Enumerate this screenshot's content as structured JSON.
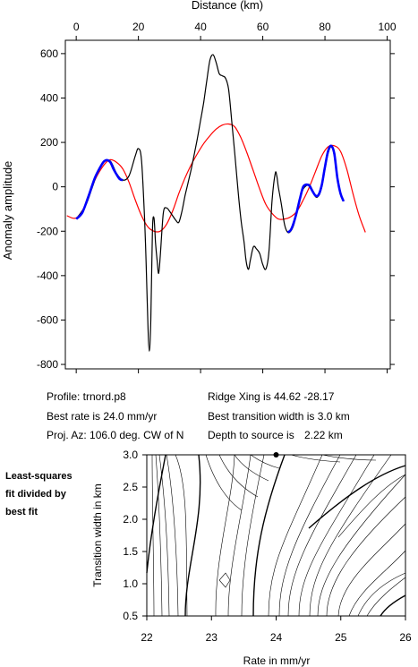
{
  "chart_data": [
    {
      "type": "line",
      "xlabel": "Distance (km)",
      "ylabel": "Anomaly amplitude",
      "xlim": [
        -3.5,
        101
      ],
      "ylim": [
        -820,
        660
      ],
      "xticks": [
        0,
        20,
        40,
        60,
        80,
        100
      ],
      "yticks": [
        -800,
        -600,
        -400,
        -200,
        0,
        200,
        400,
        600
      ],
      "series": [
        {
          "color": "#000000",
          "points": [
            [
              0,
              -145
            ],
            [
              3,
              -85
            ],
            [
              5,
              -10
            ],
            [
              7,
              70
            ],
            [
              9,
              115
            ],
            [
              11,
              115
            ],
            [
              13,
              60
            ],
            [
              15,
              30
            ],
            [
              17,
              50
            ],
            [
              19,
              140
            ],
            [
              20,
              172
            ],
            [
              21,
              120
            ],
            [
              22,
              -150
            ],
            [
              22.5,
              -350
            ],
            [
              23,
              -600
            ],
            [
              23.5,
              -740
            ],
            [
              24,
              -600
            ],
            [
              24.5,
              -200
            ],
            [
              25,
              -140
            ],
            [
              25.5,
              -250
            ],
            [
              26,
              -330
            ],
            [
              26.5,
              -390
            ],
            [
              27,
              -320
            ],
            [
              28,
              -120
            ],
            [
              29,
              -95
            ],
            [
              30,
              -110
            ],
            [
              31,
              -130
            ],
            [
              32,
              -150
            ],
            [
              33,
              -160
            ],
            [
              34,
              -110
            ],
            [
              35,
              -40
            ],
            [
              36,
              20
            ],
            [
              37,
              80
            ],
            [
              38,
              150
            ],
            [
              39,
              220
            ],
            [
              40,
              300
            ],
            [
              41,
              380
            ],
            [
              42,
              480
            ],
            [
              43,
              570
            ],
            [
              44,
              595
            ],
            [
              45,
              560
            ],
            [
              46,
              510
            ],
            [
              47,
              500
            ],
            [
              48,
              490
            ],
            [
              49,
              440
            ],
            [
              50,
              300
            ],
            [
              51,
              150
            ],
            [
              52,
              -10
            ],
            [
              53,
              -150
            ],
            [
              54,
              -250
            ],
            [
              54.5,
              -320
            ],
            [
              55,
              -360
            ],
            [
              55.5,
              -370
            ],
            [
              56,
              -330
            ],
            [
              57,
              -270
            ],
            [
              58,
              -280
            ],
            [
              59,
              -300
            ],
            [
              60,
              -350
            ],
            [
              61,
              -370
            ],
            [
              62,
              -290
            ],
            [
              63,
              -60
            ],
            [
              64,
              60
            ],
            [
              64.5,
              50
            ],
            [
              65,
              0
            ],
            [
              66,
              -80
            ],
            [
              67,
              -170
            ],
            [
              68,
              -205
            ],
            [
              69,
              -200
            ],
            [
              70,
              -170
            ],
            [
              71,
              -110
            ],
            [
              72,
              -50
            ],
            [
              73,
              -10
            ],
            [
              74,
              5
            ],
            [
              75,
              10
            ],
            [
              76,
              -15
            ],
            [
              77,
              -45
            ],
            [
              78,
              -40
            ],
            [
              79,
              0
            ],
            [
              80,
              80
            ],
            [
              81,
              150
            ],
            [
              82,
              180
            ],
            [
              83,
              140
            ],
            [
              84,
              30
            ],
            [
              85,
              -30
            ],
            [
              86,
              -65
            ]
          ]
        },
        {
          "color": "#0000ff",
          "points": [
            [
              0,
              -145
            ],
            [
              2,
              -115
            ],
            [
              4,
              -40
            ],
            [
              6,
              40
            ],
            [
              8,
              95
            ],
            [
              9,
              115
            ],
            [
              10,
              120
            ],
            [
              11,
              110
            ],
            [
              12,
              80
            ],
            [
              13,
              55
            ],
            [
              14,
              35
            ],
            [
              15,
              30
            ]
          ],
          "points2": [
            [
              68,
              -205
            ],
            [
              69,
              -195
            ],
            [
              70,
              -160
            ],
            [
              71,
              -110
            ],
            [
              72,
              -50
            ],
            [
              73,
              0
            ],
            [
              74,
              10
            ],
            [
              75,
              5
            ],
            [
              76,
              -20
            ],
            [
              77,
              -40
            ],
            [
              78,
              -35
            ],
            [
              79,
              10
            ],
            [
              80,
              90
            ],
            [
              81,
              160
            ],
            [
              82,
              185
            ],
            [
              83,
              150
            ],
            [
              84,
              40
            ],
            [
              85,
              -30
            ],
            [
              86,
              -65
            ]
          ]
        },
        {
          "color": "#ff0000",
          "points": [
            [
              -3,
              -130
            ],
            [
              0,
              -140
            ],
            [
              3,
              -80
            ],
            [
              6,
              30
            ],
            [
              9,
              100
            ],
            [
              11,
              122
            ],
            [
              13,
              110
            ],
            [
              15,
              80
            ],
            [
              17,
              20
            ],
            [
              19,
              -60
            ],
            [
              21,
              -130
            ],
            [
              23,
              -180
            ],
            [
              25,
              -200
            ],
            [
              27,
              -200
            ],
            [
              29,
              -170
            ],
            [
              31,
              -110
            ],
            [
              33,
              -30
            ],
            [
              35,
              40
            ],
            [
              37,
              100
            ],
            [
              39,
              150
            ],
            [
              41,
              195
            ],
            [
              43,
              230
            ],
            [
              45,
              260
            ],
            [
              47,
              278
            ],
            [
              49,
              283
            ],
            [
              51,
              270
            ],
            [
              53,
              220
            ],
            [
              55,
              150
            ],
            [
              57,
              70
            ],
            [
              59,
              -10
            ],
            [
              61,
              -80
            ],
            [
              63,
              -120
            ],
            [
              65,
              -145
            ],
            [
              67,
              -145
            ],
            [
              69,
              -135
            ],
            [
              71,
              -110
            ],
            [
              73,
              -60
            ],
            [
              75,
              0
            ],
            [
              77,
              70
            ],
            [
              79,
              140
            ],
            [
              81,
              180
            ],
            [
              83,
              185
            ],
            [
              85,
              160
            ],
            [
              87,
              80
            ],
            [
              89,
              -30
            ],
            [
              91,
              -130
            ],
            [
              93,
              -205
            ]
          ]
        }
      ]
    },
    {
      "type": "contour",
      "xlabel": "Rate in mm/yr",
      "ylabel": "Transition width in km",
      "xlim": [
        22,
        26
      ],
      "ylim": [
        0.5,
        3.0
      ],
      "xticks": [
        22,
        23,
        24,
        25,
        26
      ],
      "yticks": [
        0.5,
        1.0,
        1.5,
        2.0,
        2.5,
        3.0
      ],
      "best_fit_marker": [
        24.0,
        3.0
      ]
    }
  ],
  "text_panel": {
    "profile": "Profile: trnord.p8",
    "ridge_xing": "Ridge Xing is 44.62 -28.17",
    "best_rate": "Best rate is 24.0 mm/yr",
    "best_transition": "Best transition width is 3.0 km",
    "proj_az": "Proj. Az: 106.0 deg. CW of N",
    "depth_label": "Depth to source is",
    "depth_value": "2.22 km"
  },
  "side_note": {
    "line1": "Least-squares",
    "line2": "fit divided by",
    "line3": "best fit"
  }
}
